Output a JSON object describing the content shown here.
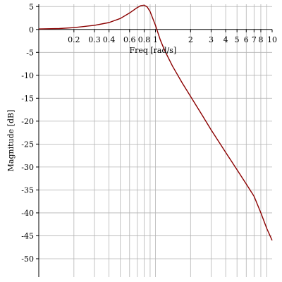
{
  "chart_data": {
    "type": "line",
    "title": "",
    "xlabel": "Freq [rad/s]",
    "ylabel": "Magnitude [dB]",
    "x_scale": "log",
    "xlim": [
      0.1,
      10
    ],
    "ylim": [
      -54,
      5.5
    ],
    "grid": true,
    "x_tick_labels": [
      "0.2",
      "0.3",
      "0.4",
      "0.6",
      "0.8",
      "1",
      "2",
      "3",
      "4",
      "5",
      "6",
      "7",
      "8",
      "10"
    ],
    "y_tick_labels": [
      "5",
      "0",
      "-5",
      "-10",
      "-15",
      "-20",
      "-25",
      "-30",
      "-35",
      "-40",
      "-45",
      "-50"
    ],
    "series": [
      {
        "color": "#8b0000",
        "x": [
          0.1,
          0.15,
          0.2,
          0.3,
          0.4,
          0.5,
          0.6,
          0.7,
          0.75,
          0.8,
          0.85,
          0.9,
          1.0,
          1.1,
          1.2,
          1.4,
          1.7,
          2.0,
          2.5,
          3.0,
          4.0,
          5.0,
          6.0,
          7.0,
          8.0,
          9.0,
          10.0
        ],
        "y": [
          0.1,
          0.2,
          0.4,
          0.9,
          1.5,
          2.4,
          3.6,
          4.8,
          5.2,
          5.3,
          4.9,
          3.9,
          0.9,
          -2.3,
          -4.6,
          -8.0,
          -11.7,
          -14.6,
          -18.6,
          -21.9,
          -26.8,
          -30.6,
          -33.7,
          -36.4,
          -40.0,
          -43.4,
          -46.0
        ]
      }
    ]
  }
}
